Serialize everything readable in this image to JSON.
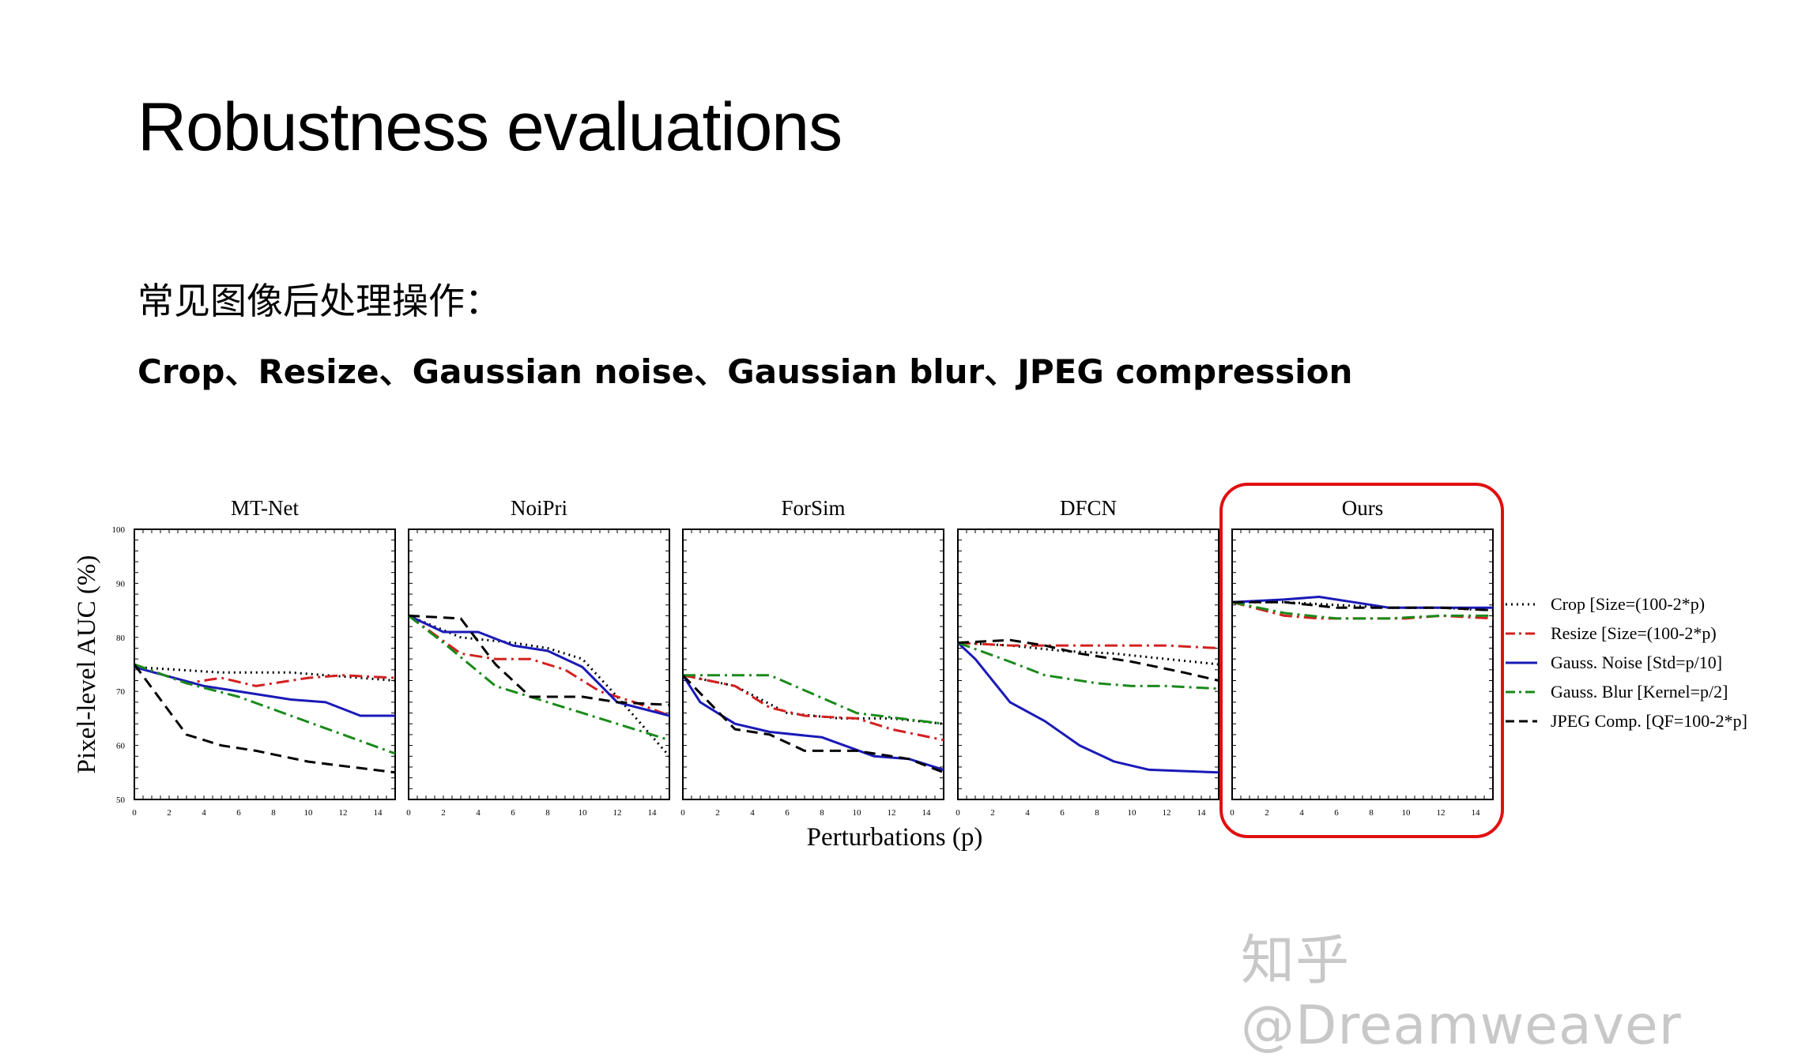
{
  "slide": {
    "title": "Robustness evaluations",
    "subtitle": "常见图像后处理操作：",
    "operations": "Crop、Resize、Gaussian noise、Gaussian blur、JPEG compression",
    "watermark": "知乎 @Dreamweaver"
  },
  "chart_data": {
    "type": "line",
    "ylabel": "Pixel-level AUC (%)",
    "xlabel": "Perturbations (p)",
    "ylim": [
      50,
      100
    ],
    "yticks": [
      50,
      60,
      70,
      80,
      90,
      100
    ],
    "xlim": [
      0,
      15
    ],
    "xticks": [
      0,
      2,
      4,
      6,
      8,
      10,
      12,
      14
    ],
    "legend_position": "right",
    "highlight": {
      "panel": "Ours",
      "color": "#e01010"
    },
    "legend": [
      {
        "label": "Crop [Size=(100-2*p)",
        "color": "#000000",
        "dash": "dotted"
      },
      {
        "label": "Resize [Size=(100-2*p)",
        "color": "#d42020",
        "dash": "dashdot"
      },
      {
        "label": "Gauss. Noise [Std=p/10]",
        "color": "#1a1ab8",
        "dash": "solid"
      },
      {
        "label": "Gauss. Blur [Kernel=p/2]",
        "color": "#1a8a1a",
        "dash": "dashdot"
      },
      {
        "label": "JPEG Comp. [QF=100-2*p]",
        "color": "#000000",
        "dash": "dashed"
      }
    ],
    "panels": [
      {
        "title": "MT-Net",
        "series": [
          {
            "x": [
              0,
              5,
              9,
              15
            ],
            "y": [
              74.5,
              73.5,
              73.5,
              72
            ]
          },
          {
            "x": [
              0,
              3,
              5,
              7,
              10,
              12,
              15
            ],
            "y": [
              75,
              71.5,
              72.5,
              71,
              72.5,
              73,
              72.5
            ]
          },
          {
            "x": [
              0,
              4,
              7,
              9,
              11,
              13,
              15
            ],
            "y": [
              74.5,
              71,
              69.5,
              68.5,
              68,
              65.5,
              65.5
            ]
          },
          {
            "x": [
              0,
              3,
              6,
              9,
              12,
              15
            ],
            "y": [
              75,
              71.5,
              69,
              65.5,
              62,
              58.5
            ]
          },
          {
            "x": [
              0,
              3,
              5,
              7,
              10,
              15
            ],
            "y": [
              75,
              62,
              60,
              59,
              57,
              55
            ]
          }
        ]
      },
      {
        "title": "NoiPri",
        "series": [
          {
            "x": [
              0,
              3,
              6,
              8,
              10,
              12,
              15
            ],
            "y": [
              84,
              80,
              79,
              78,
              76,
              69,
              58
            ]
          },
          {
            "x": [
              0,
              3,
              5,
              7,
              9,
              11,
              13,
              15
            ],
            "y": [
              84,
              77,
              76,
              76,
              74,
              70,
              68,
              65.5
            ]
          },
          {
            "x": [
              0,
              2,
              4,
              6,
              8,
              10,
              12,
              15
            ],
            "y": [
              84,
              81,
              81,
              78.5,
              77.5,
              74.5,
              68,
              65.5
            ]
          },
          {
            "x": [
              0,
              2,
              5,
              8,
              11,
              15
            ],
            "y": [
              84,
              79,
              71,
              68,
              65,
              61
            ]
          },
          {
            "x": [
              0,
              3,
              5,
              7,
              10,
              12,
              15
            ],
            "y": [
              84,
              83.5,
              75,
              69,
              69,
              68,
              67.5
            ]
          }
        ]
      },
      {
        "title": "ForSim",
        "series": [
          {
            "x": [
              0,
              3,
              6,
              9,
              12,
              15
            ],
            "y": [
              73,
              71,
              66,
              65,
              65,
              64
            ]
          },
          {
            "x": [
              0,
              3,
              5,
              7,
              10,
              12,
              15
            ],
            "y": [
              73,
              71,
              67,
              65.5,
              65,
              63,
              61
            ]
          },
          {
            "x": [
              0,
              1,
              3,
              5,
              8,
              11,
              13,
              15
            ],
            "y": [
              73,
              68,
              64,
              62.5,
              61.5,
              58,
              57.5,
              55.5
            ]
          },
          {
            "x": [
              0,
              5,
              10,
              15
            ],
            "y": [
              73,
              73,
              66,
              64
            ]
          },
          {
            "x": [
              0,
              3,
              5,
              7,
              10,
              13,
              15
            ],
            "y": [
              73,
              63,
              62,
              59,
              59,
              57.5,
              55
            ]
          }
        ]
      },
      {
        "title": "DFCN",
        "series": [
          {
            "x": [
              0,
              3,
              6,
              9,
              12,
              15
            ],
            "y": [
              79,
              78.5,
              77.5,
              77,
              76,
              75
            ]
          },
          {
            "x": [
              0,
              3,
              6,
              9,
              12,
              15
            ],
            "y": [
              79,
              78.5,
              78.5,
              78.5,
              78.5,
              78
            ]
          },
          {
            "x": [
              0,
              1,
              3,
              5,
              7,
              9,
              11,
              15
            ],
            "y": [
              79,
              76,
              68,
              64.5,
              60,
              57,
              55.5,
              55
            ]
          },
          {
            "x": [
              0,
              3,
              5,
              8,
              10,
              12,
              15
            ],
            "y": [
              79,
              75.5,
              73,
              71.5,
              71,
              71,
              70.5
            ]
          },
          {
            "x": [
              0,
              3,
              5,
              7,
              10,
              13,
              15
            ],
            "y": [
              79,
              79.5,
              78.5,
              77,
              75.5,
              73.5,
              72
            ]
          }
        ]
      },
      {
        "title": "Ours",
        "series": [
          {
            "x": [
              0,
              3,
              6,
              9,
              12,
              15
            ],
            "y": [
              86.5,
              86.5,
              86,
              85.5,
              85.5,
              85
            ]
          },
          {
            "x": [
              0,
              3,
              5,
              7,
              10,
              12,
              15
            ],
            "y": [
              86.5,
              84,
              83.5,
              83.5,
              83.5,
              84,
              83.5
            ]
          },
          {
            "x": [
              0,
              3,
              5,
              7,
              9,
              12,
              15
            ],
            "y": [
              86.5,
              87,
              87.5,
              86.5,
              85.5,
              85.5,
              85.5
            ]
          },
          {
            "x": [
              0,
              3,
              6,
              9,
              12,
              15
            ],
            "y": [
              86.5,
              84.5,
              83.5,
              83.5,
              84,
              84
            ]
          },
          {
            "x": [
              0,
              3,
              6,
              9,
              12,
              15
            ],
            "y": [
              86.5,
              86.5,
              85.5,
              85.5,
              85.5,
              85
            ]
          }
        ]
      }
    ]
  }
}
